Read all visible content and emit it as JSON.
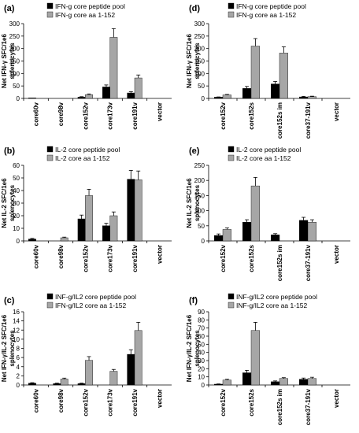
{
  "chart_data": [
    {
      "type": "bar",
      "panel": "(a)",
      "ylabel": [
        "Net IFN-γ SFC/1e6",
        "splenocytes"
      ],
      "ylim": [
        0,
        300
      ],
      "yticks": [
        0,
        50,
        100,
        150,
        200,
        250,
        300
      ],
      "categories": [
        "core60v",
        "core98v",
        "core152v",
        "core173v",
        "core191v",
        "vector"
      ],
      "series": [
        {
          "name": "IFN-g core peptide pool",
          "color": "#000000",
          "values": [
            2,
            0,
            5,
            46,
            22,
            0
          ],
          "errors": [
            0,
            0,
            2,
            8,
            5,
            0
          ]
        },
        {
          "name": "IFN-g core aa 1-152",
          "color": "#a6a6a6",
          "values": [
            0,
            0,
            15,
            245,
            82,
            0
          ],
          "errors": [
            0,
            0,
            3,
            35,
            12,
            0
          ]
        }
      ]
    },
    {
      "type": "bar",
      "panel": "(b)",
      "ylabel": [
        "Net IL-2 SFC/1e6",
        "splenocytes"
      ],
      "ylim": [
        0,
        60
      ],
      "yticks": [
        0,
        10,
        20,
        30,
        40,
        50,
        60
      ],
      "categories": [
        "core60v",
        "core98v",
        "core152v",
        "core173v",
        "core191v",
        "vector"
      ],
      "series": [
        {
          "name": "IL-2 core peptide pool",
          "color": "#000000",
          "values": [
            1.5,
            0,
            17.5,
            12,
            49,
            0
          ],
          "errors": [
            0.5,
            0,
            3,
            2,
            7,
            0
          ]
        },
        {
          "name": "IL-2 core aa 1-152",
          "color": "#a6a6a6",
          "values": [
            0,
            2.5,
            36,
            20,
            48.5,
            0
          ],
          "errors": [
            0,
            0.5,
            5,
            3,
            7,
            0
          ]
        }
      ]
    },
    {
      "type": "bar",
      "panel": "(c)",
      "ylabel": [
        "Net IFN-γ/IL-2 SFC/1e6",
        "splenocytes"
      ],
      "ylim": [
        0,
        16
      ],
      "yticks": [
        0,
        2,
        4,
        6,
        8,
        10,
        12,
        14,
        16
      ],
      "categories": [
        "core60v",
        "core98v",
        "core152v",
        "core173v",
        "core191v",
        "vector"
      ],
      "series": [
        {
          "name": "INF-g/IL2 core peptide pool",
          "color": "#000000",
          "values": [
            0.4,
            0.3,
            0.3,
            0,
            6.7,
            0
          ],
          "errors": [
            0.1,
            0.1,
            0.1,
            0,
            1,
            0
          ]
        },
        {
          "name": "IFN-g/IL2 core aa 1-152",
          "color": "#a6a6a6",
          "values": [
            0,
            1.3,
            5.4,
            3,
            11.9,
            0
          ],
          "errors": [
            0,
            0.2,
            0.8,
            0.4,
            1.8,
            0
          ]
        }
      ]
    },
    {
      "type": "bar",
      "panel": "(d)",
      "ylabel": [
        "Net IFN-γ SFC/1e6",
        "splenocytes"
      ],
      "ylim": [
        0,
        300
      ],
      "yticks": [
        0,
        50,
        100,
        150,
        200,
        250,
        300
      ],
      "categories": [
        "core152v",
        "core152s",
        "core152s im",
        "core37-191v",
        "vector"
      ],
      "series": [
        {
          "name": "IFN-g core peptide pool",
          "color": "#000000",
          "values": [
            5,
            40,
            58,
            6,
            0
          ],
          "errors": [
            1,
            8,
            10,
            2,
            0
          ]
        },
        {
          "name": "IFN-g core aa 1-152",
          "color": "#a6a6a6",
          "values": [
            14,
            210,
            182,
            7,
            0
          ],
          "errors": [
            2,
            30,
            25,
            2,
            0
          ]
        }
      ]
    },
    {
      "type": "bar",
      "panel": "(e)",
      "ylabel": [
        "Net IL-2 SFC/1e6",
        "splenocytes"
      ],
      "ylim": [
        0,
        250
      ],
      "yticks": [
        0,
        50,
        100,
        150,
        200,
        250
      ],
      "categories": [
        "core152v",
        "core152s",
        "core152s im",
        "core37-191v",
        "vector"
      ],
      "series": [
        {
          "name": "IL-2 core peptide pool",
          "color": "#000000",
          "values": [
            18,
            62,
            20,
            68,
            0
          ],
          "errors": [
            5,
            8,
            4,
            10,
            0
          ]
        },
        {
          "name": "IL-2 core aa 1-152",
          "color": "#a6a6a6",
          "values": [
            38,
            182,
            0,
            62,
            0
          ],
          "errors": [
            5,
            28,
            0,
            8,
            0
          ]
        }
      ]
    },
    {
      "type": "bar",
      "panel": "(f)",
      "ylabel": [
        "Net IFN-γ/IL-2 SFC/1e6",
        "splenocytes"
      ],
      "ylim": [
        0,
        90
      ],
      "yticks": [
        0,
        10,
        20,
        30,
        40,
        50,
        60,
        70,
        80,
        90
      ],
      "categories": [
        "core152v",
        "core152s",
        "core152s im",
        "core37-191v",
        "vector"
      ],
      "series": [
        {
          "name": "INF-g/IL2 core peptide pool",
          "color": "#000000",
          "values": [
            1,
            15,
            4,
            7,
            0
          ],
          "errors": [
            0.3,
            3,
            1,
            1.5,
            0
          ]
        },
        {
          "name": "INF-g/IL2 core aa 1-152",
          "color": "#a6a6a6",
          "values": [
            6,
            67,
            8,
            8,
            0
          ],
          "errors": [
            1,
            10,
            1,
            1.5,
            0
          ]
        }
      ]
    }
  ]
}
